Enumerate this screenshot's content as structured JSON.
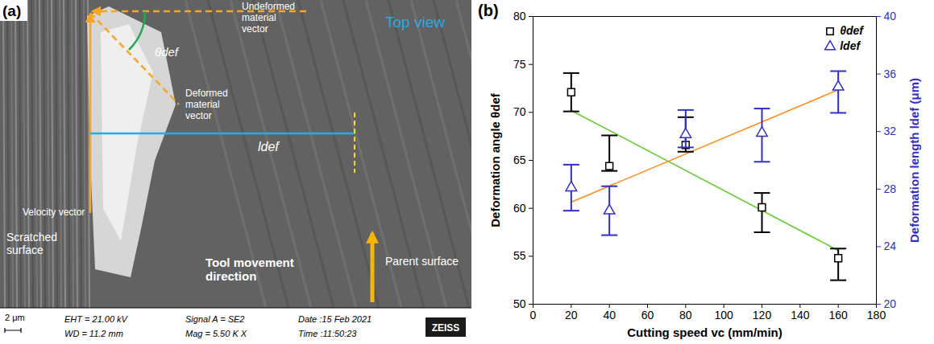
{
  "chart_data": {
    "type": "scatter",
    "label": "(b)",
    "x": [
      20,
      40,
      80,
      120,
      160
    ],
    "xlabel": "Cutting speed vc (mm/min)",
    "ylabel": "Deformation angle θdef",
    "y2label": "Deformation length ldef (μm)",
    "xlim": [
      0,
      180
    ],
    "xticks": [
      0,
      20,
      40,
      60,
      80,
      100,
      120,
      140,
      160,
      180
    ],
    "ylim": [
      50,
      80
    ],
    "yticks": [
      50,
      55,
      60,
      65,
      70,
      75,
      80
    ],
    "y2lim": [
      20,
      40
    ],
    "y2ticks": [
      20,
      24,
      28,
      32,
      36,
      40
    ],
    "legend": "top-right",
    "series": [
      {
        "name": "θdef",
        "axis": "y",
        "color": "#000000",
        "marker": "square",
        "values": [
          72.1,
          64.4,
          66.6,
          60.1,
          54.8
        ],
        "error_low": [
          70.1,
          63.9,
          65.9,
          57.5,
          52.5
        ],
        "error_high": [
          74.1,
          67.6,
          69.5,
          61.6,
          55.8
        ]
      },
      {
        "name": "ldef",
        "axis": "y2",
        "color": "#2f2fc8",
        "marker": "triangle",
        "values": [
          28.1,
          26.5,
          31.8,
          31.9,
          35.1
        ],
        "error_low": [
          26.5,
          24.8,
          30.9,
          29.9,
          33.3
        ],
        "error_high": [
          29.7,
          28.2,
          33.5,
          33.6,
          36.2
        ]
      }
    ],
    "trend_lines": [
      {
        "type": "line",
        "line_style": "solid",
        "color": "#66cc33",
        "axis": "y",
        "x": [
          20,
          160
        ],
        "values": [
          70.2,
          55.6
        ]
      },
      {
        "type": "line",
        "line_style": "solid",
        "color": "#ff8c1a",
        "axis": "y2",
        "x": [
          20,
          160
        ],
        "values": [
          27.1,
          34.9
        ]
      }
    ]
  },
  "image_panel": {
    "label": "(a)",
    "view": "Top view",
    "undeformed": "Undeformed material vector",
    "deformed": "Deformed material vector",
    "angle": "θdef",
    "velocity": "Velocity vector",
    "length": "ldef",
    "scratched": "Scratched surface",
    "tool": "Tool movement direction",
    "parent": "Parent surface",
    "scale_bar": "2 μm",
    "info": [
      "EHT = 21.00 kV",
      "WD = 11.2 mm",
      "Signal A = SE2",
      "Mag = 5.50 K X",
      "Date :15 Feb 2021",
      "Time :11:50:23"
    ],
    "brand": "ZEISS"
  }
}
